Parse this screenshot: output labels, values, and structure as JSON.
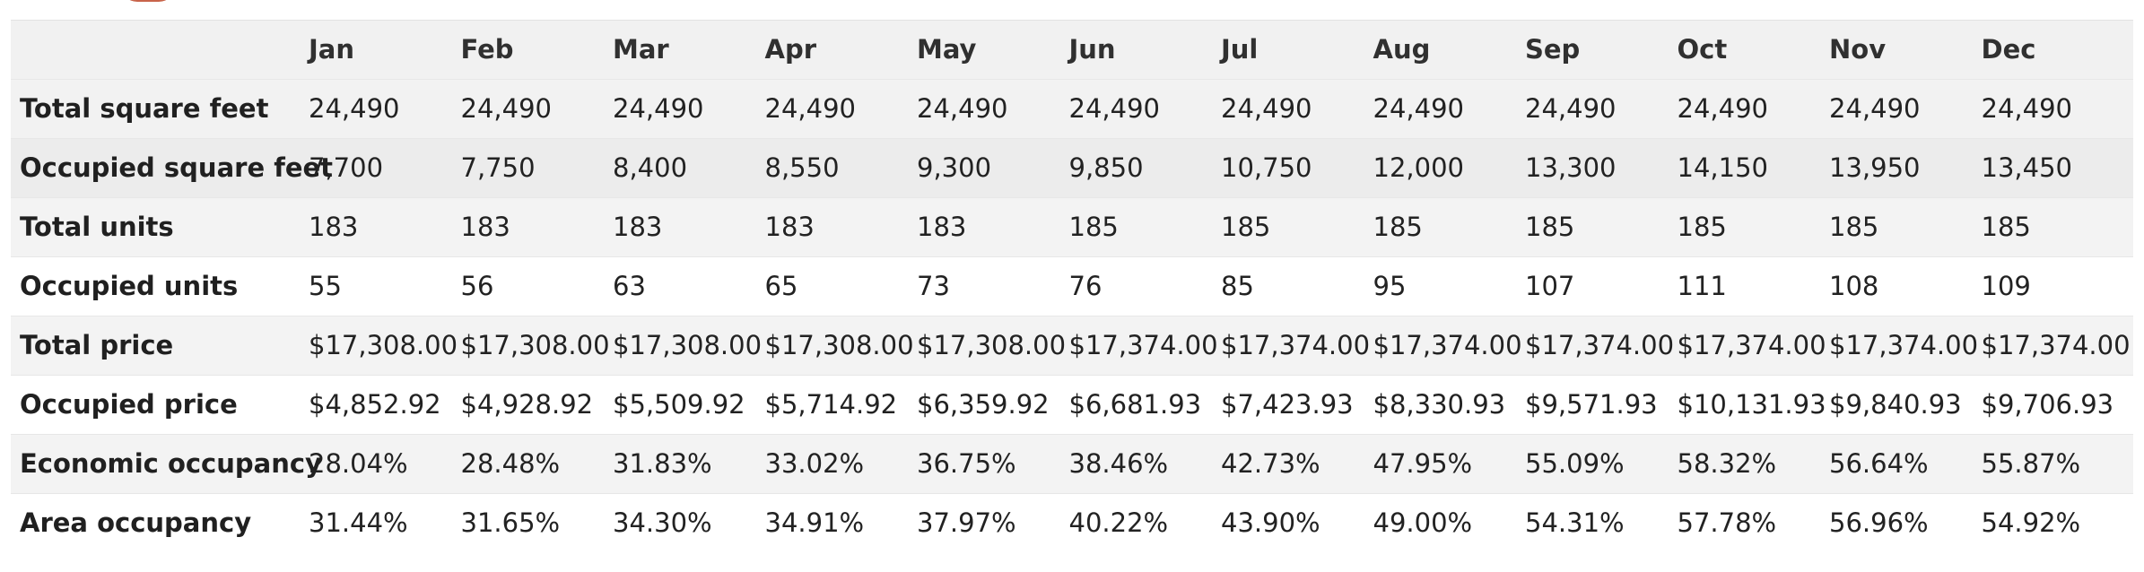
{
  "table": {
    "columns": [
      "",
      "Jan",
      "Feb",
      "Mar",
      "Apr",
      "May",
      "Jun",
      "Jul",
      "Aug",
      "Sep",
      "Oct",
      "Nov",
      "Dec"
    ],
    "rows": [
      {
        "label": "Total square feet",
        "values": [
          "24,490",
          "24,490",
          "24,490",
          "24,490",
          "24,490",
          "24,490",
          "24,490",
          "24,490",
          "24,490",
          "24,490",
          "24,490",
          "24,490"
        ]
      },
      {
        "label": "Occupied square feet",
        "values": [
          "7,700",
          "7,750",
          "8,400",
          "8,550",
          "9,300",
          "9,850",
          "10,750",
          "12,000",
          "13,300",
          "14,150",
          "13,950",
          "13,450"
        ]
      },
      {
        "label": "Total units",
        "values": [
          "183",
          "183",
          "183",
          "183",
          "183",
          "185",
          "185",
          "185",
          "185",
          "185",
          "185",
          "185"
        ]
      },
      {
        "label": "Occupied units",
        "values": [
          "55",
          "56",
          "63",
          "65",
          "73",
          "76",
          "85",
          "95",
          "107",
          "111",
          "108",
          "109"
        ]
      },
      {
        "label": "Total price",
        "values": [
          "$17,308.00",
          "$17,308.00",
          "$17,308.00",
          "$17,308.00",
          "$17,308.00",
          "$17,374.00",
          "$17,374.00",
          "$17,374.00",
          "$17,374.00",
          "$17,374.00",
          "$17,374.00",
          "$17,374.00"
        ]
      },
      {
        "label": "Occupied price",
        "values": [
          "$4,852.92",
          "$4,928.92",
          "$5,509.92",
          "$5,714.92",
          "$6,359.92",
          "$6,681.93",
          "$7,423.93",
          "$8,330.93",
          "$9,571.93",
          "$10,131.93",
          "$9,840.93",
          "$9,706.93"
        ]
      },
      {
        "label": "Economic occupancy",
        "values": [
          "28.04%",
          "28.48%",
          "31.83%",
          "33.02%",
          "36.75%",
          "38.46%",
          "42.73%",
          "47.95%",
          "55.09%",
          "58.32%",
          "56.64%",
          "55.87%"
        ]
      },
      {
        "label": "Area occupancy",
        "values": [
          "31.44%",
          "31.65%",
          "34.30%",
          "34.91%",
          "37.97%",
          "40.22%",
          "43.90%",
          "49.00%",
          "54.31%",
          "57.78%",
          "56.96%",
          "54.92%"
        ]
      }
    ]
  },
  "colors": {
    "header_bg": "#f1f1f1",
    "row_bg_alt": "#f2f2f2",
    "heading_accent": "#c8644a"
  }
}
